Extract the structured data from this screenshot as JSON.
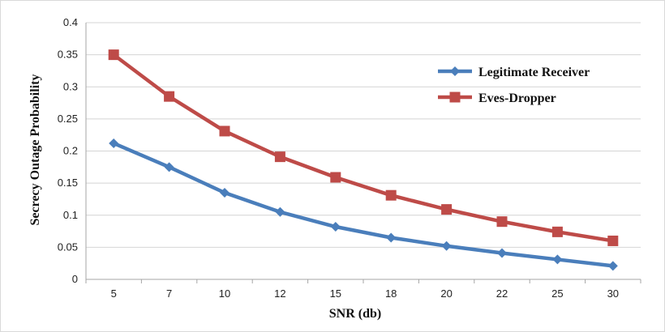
{
  "chart_data": {
    "type": "line",
    "categories": [
      "5",
      "7",
      "10",
      "12",
      "15",
      "18",
      "20",
      "22",
      "25",
      "30"
    ],
    "series": [
      {
        "name": "Legitimate Receiver",
        "color": "#4a7ebb",
        "marker": "diamond",
        "values": [
          0.212,
          0.175,
          0.135,
          0.105,
          0.082,
          0.065,
          0.052,
          0.041,
          0.031,
          0.021
        ]
      },
      {
        "name": "Eves-Dropper",
        "color": "#be4b48",
        "marker": "square",
        "values": [
          0.35,
          0.285,
          0.231,
          0.191,
          0.159,
          0.131,
          0.109,
          0.09,
          0.074,
          0.06
        ]
      }
    ],
    "xlabel": "SNR (db)",
    "ylabel": "Secrecy Outage Probability",
    "ylim": [
      0,
      0.4
    ],
    "yticks": [
      "0",
      "0.05",
      "0.1",
      "0.15",
      "0.2",
      "0.25",
      "0.3",
      "0.35",
      "0.4"
    ],
    "grid": true,
    "legend_position": "top-right"
  }
}
